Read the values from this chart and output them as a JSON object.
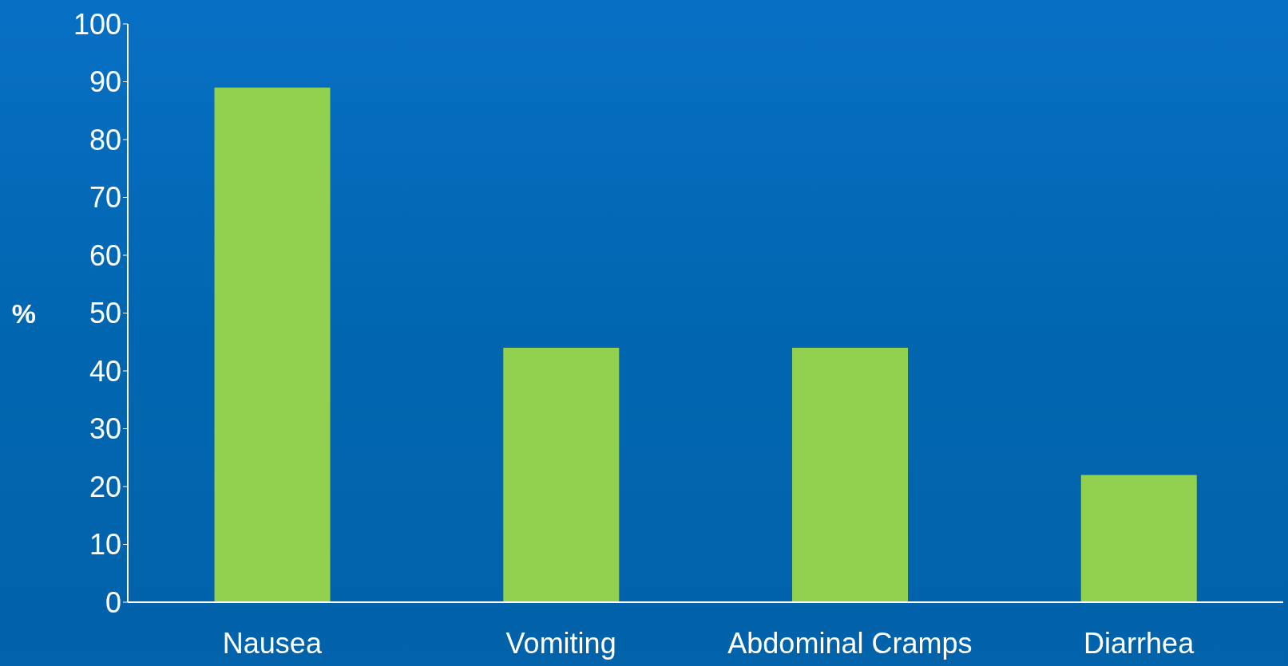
{
  "chart_data": {
    "type": "bar",
    "ylabel": "%",
    "categories": [
      "Nausea",
      "Vomiting",
      "Abdominal Cramps",
      "Diarrhea"
    ],
    "values": [
      89,
      44,
      44,
      22
    ],
    "color": "#92d050",
    "ylim": [
      0,
      100
    ],
    "yticks": [
      0,
      10,
      20,
      30,
      40,
      50,
      60,
      70,
      80,
      90,
      100
    ],
    "grid": false
  }
}
